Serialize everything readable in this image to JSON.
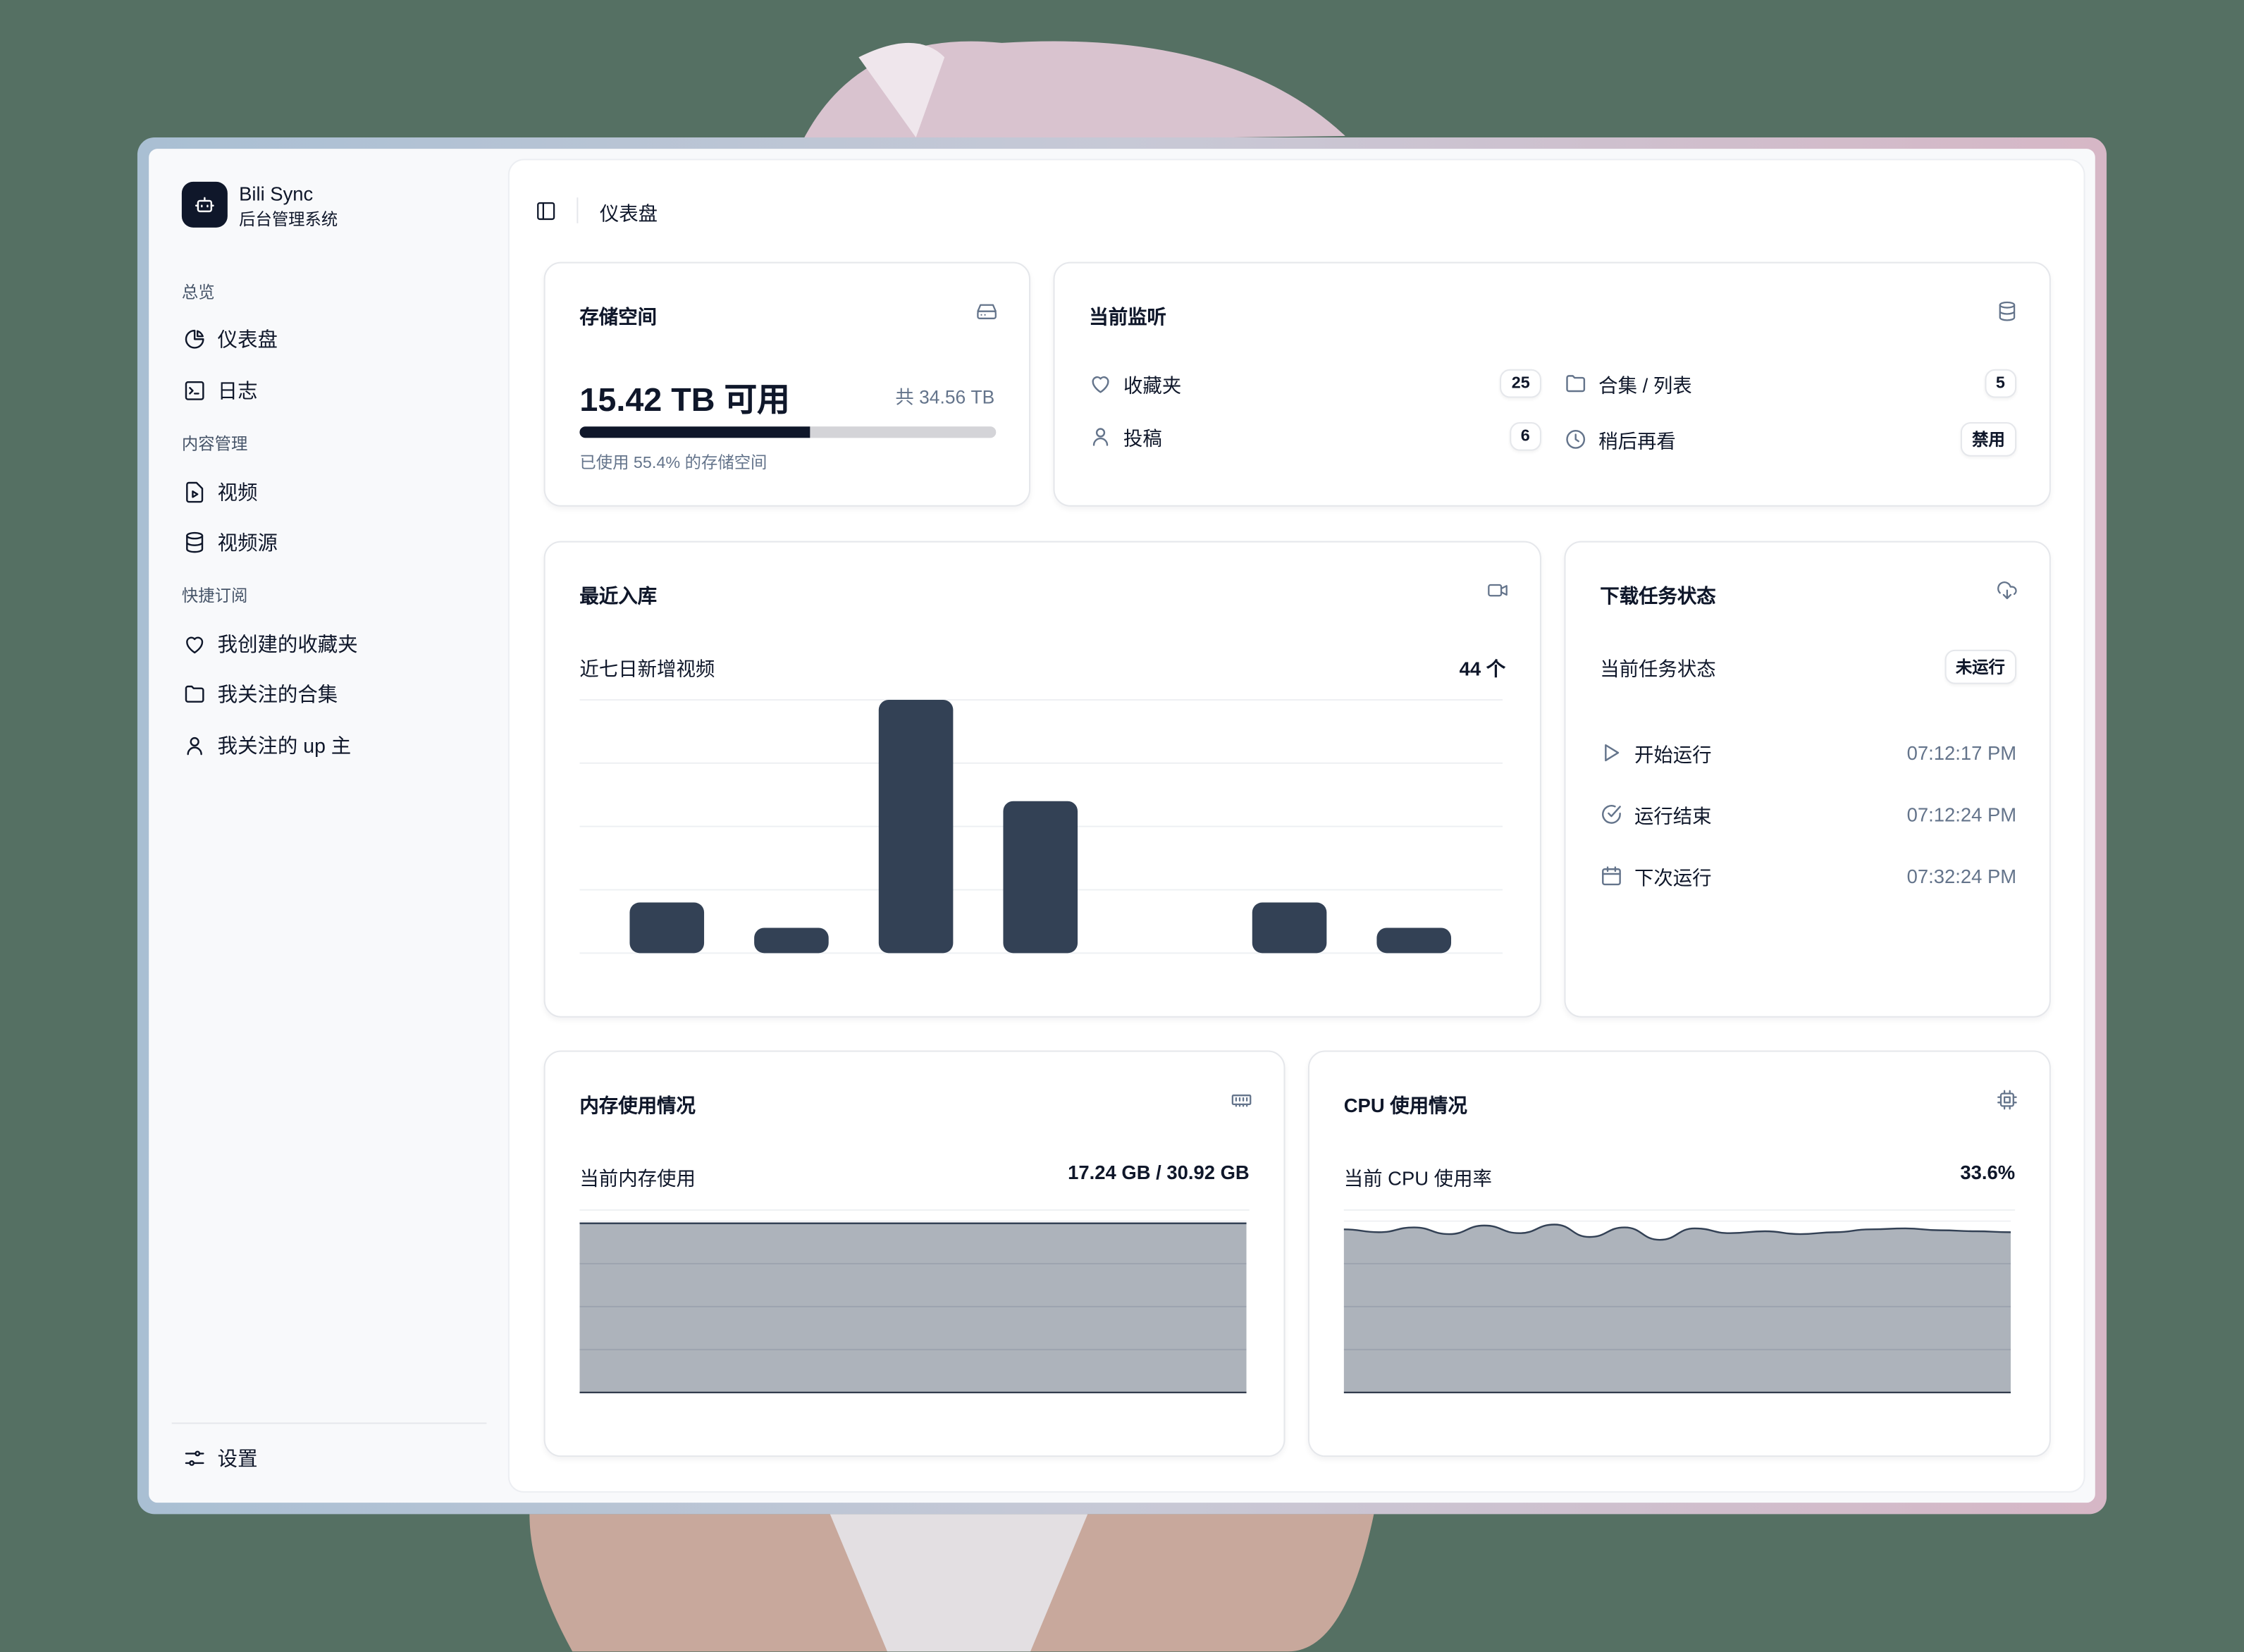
{
  "app": {
    "name": "Bili Sync",
    "subtitle": "后台管理系统"
  },
  "sidebar": {
    "sections": [
      {
        "label": "总览",
        "items": [
          {
            "label": "仪表盘",
            "icon": "pie-chart-icon"
          },
          {
            "label": "日志",
            "icon": "terminal-icon"
          }
        ]
      },
      {
        "label": "内容管理",
        "items": [
          {
            "label": "视频",
            "icon": "video-file-icon"
          },
          {
            "label": "视频源",
            "icon": "database-icon"
          }
        ]
      },
      {
        "label": "快捷订阅",
        "items": [
          {
            "label": "我创建的收藏夹",
            "icon": "heart-icon"
          },
          {
            "label": "我关注的合集",
            "icon": "folder-icon"
          },
          {
            "label": "我关注的 up 主",
            "icon": "user-icon"
          }
        ]
      }
    ],
    "settings": "设置"
  },
  "header": {
    "breadcrumb": "仪表盘"
  },
  "storage": {
    "title": "存储空间",
    "available": "15.42 TB 可用",
    "total": "共 34.56 TB",
    "used_percent": 55.4,
    "used_text": "已使用 55.4% 的存储空间"
  },
  "monitor": {
    "title": "当前监听",
    "items": [
      {
        "label": "收藏夹",
        "value": "25",
        "icon": "heart-icon"
      },
      {
        "label": "合集 / 列表",
        "value": "5",
        "icon": "folder-icon"
      },
      {
        "label": "投稿",
        "value": "6",
        "icon": "user-icon"
      },
      {
        "label": "稍后再看",
        "value": "禁用",
        "icon": "clock-icon"
      }
    ]
  },
  "recent": {
    "title": "最近入库",
    "subtitle": "近七日新增视频",
    "count": "44 个"
  },
  "chart_data": [
    {
      "type": "bar",
      "title": "近七日新增视频",
      "values": [
        4,
        2,
        20,
        12,
        0,
        4,
        2
      ],
      "ylim": [
        0,
        20
      ],
      "grid": true,
      "color": "#334155"
    },
    {
      "type": "area",
      "title": "当前内存使用",
      "values": [
        17.24,
        17.24,
        17.24,
        17.24,
        17.24,
        17.24,
        17.24,
        17.24,
        17.24,
        17.24
      ],
      "ylim": [
        0,
        17.5
      ],
      "grid": true,
      "color": "#334155"
    },
    {
      "type": "area",
      "title": "当前 CPU 使用率",
      "values": [
        34.2,
        33.6,
        34.6,
        33.2,
        35,
        33.4,
        35.2,
        32.6,
        34.6,
        32,
        34.4,
        33.4,
        33.8,
        33.2,
        33.6,
        34.2,
        34.4,
        34,
        33.8,
        33.6
      ],
      "ylim": [
        0,
        36
      ],
      "grid": true,
      "color": "#334155"
    }
  ],
  "download": {
    "title": "下载任务状态",
    "status_label": "当前任务状态",
    "status": "未运行",
    "rows": [
      {
        "label": "开始运行",
        "time": "07:12:17 PM",
        "icon": "play-icon"
      },
      {
        "label": "运行结束",
        "time": "07:12:24 PM",
        "icon": "check-circle-icon"
      },
      {
        "label": "下次运行",
        "time": "07:32:24 PM",
        "icon": "calendar-icon"
      }
    ]
  },
  "memory": {
    "title": "内存使用情况",
    "label": "当前内存使用",
    "value": "17.24 GB / 30.92 GB"
  },
  "cpu": {
    "title": "CPU 使用情况",
    "label": "当前 CPU 使用率",
    "value": "33.6%"
  }
}
